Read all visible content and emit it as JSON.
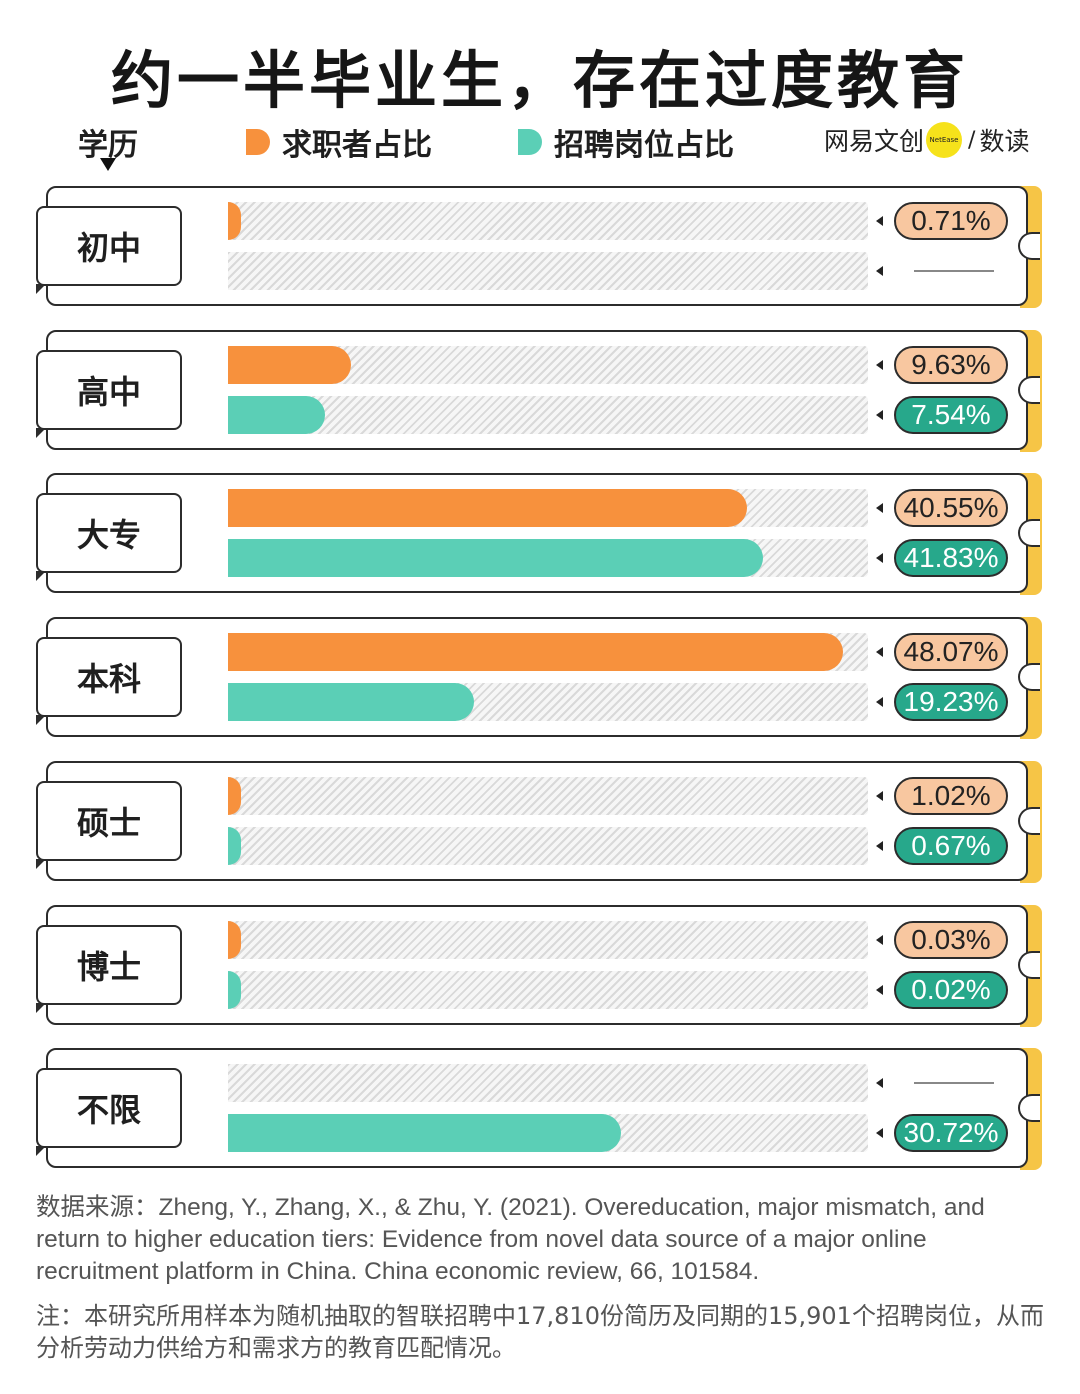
{
  "title": "约一半毕业生，存在过度教育",
  "legend": {
    "category_label": "学历",
    "seeker_label": "求职者占比",
    "posting_label": "招聘岗位占比"
  },
  "brand": {
    "left": "网易文创",
    "dot": "NetEase",
    "sep": "/",
    "right": "数读"
  },
  "colors": {
    "seeker": "#f7913d",
    "posting": "#5bcfb6",
    "seeker_pill": "#f8c7a0",
    "posting_pill": "#27a88b",
    "accent": "#f6c546"
  },
  "chart_data": {
    "type": "bar",
    "orientation": "horizontal",
    "xlim": [
      0,
      50
    ],
    "categories": [
      "初中",
      "高中",
      "大专",
      "本科",
      "硕士",
      "博士",
      "不限"
    ],
    "series": [
      {
        "name": "求职者占比",
        "values": [
          0.71,
          9.63,
          40.55,
          48.07,
          1.02,
          0.03,
          null
        ],
        "labels": [
          "0.71%",
          "9.63%",
          "40.55%",
          "48.07%",
          "1.02%",
          "0.03%",
          null
        ]
      },
      {
        "name": "招聘岗位占比",
        "values": [
          null,
          7.54,
          41.83,
          19.23,
          0.67,
          0.02,
          30.72
        ],
        "labels": [
          null,
          "7.54%",
          "41.83%",
          "19.23%",
          "0.67%",
          "0.02%",
          "30.72%"
        ]
      }
    ]
  },
  "source": "数据来源：Zheng, Y., Zhang, X., & Zhu, Y. (2021). Overeducation, major mismatch, and return to higher education tiers: Evidence from novel data source of a major online recruitment platform in China. China economic review, 66, 101584.",
  "note": "注：本研究所用样本为随机抽取的智联招聘中17,810份简历及同期的15,901个招聘岗位，从而分析劳动力供给方和需求方的教育匹配情况。"
}
